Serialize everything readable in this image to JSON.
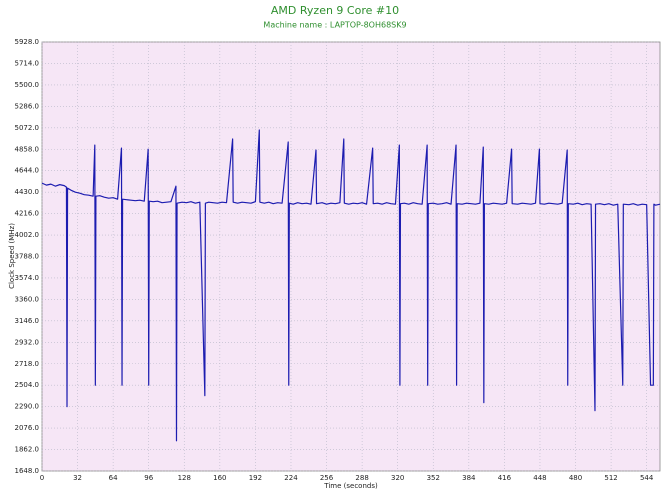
{
  "chart_data": {
    "type": "line",
    "title": "AMD Ryzen 9 Core #10",
    "subtitle": "Machine name : LAPTOP-8OH68SK9",
    "x_label": "Time (seconds)",
    "y_label": "Clock Speed (MHz)",
    "xlim": [
      0,
      556
    ],
    "xticks": [
      0,
      32,
      64,
      96,
      128,
      160,
      192,
      224,
      256,
      288,
      320,
      352,
      384,
      416,
      448,
      480,
      512,
      544
    ],
    "ylim": [
      1648,
      5928
    ],
    "yticks": [
      {
        "value": 1648,
        "label": "1648.0"
      },
      {
        "value": 1862,
        "label": "1862.0"
      },
      {
        "value": 2076,
        "label": "2076.0"
      },
      {
        "value": 2290,
        "label": "2290.0"
      },
      {
        "value": 2504,
        "label": "2504.0"
      },
      {
        "value": 2718,
        "label": "2718.0"
      },
      {
        "value": 2932,
        "label": "2932.0"
      },
      {
        "value": 3146,
        "label": "3146.0"
      },
      {
        "value": 3360,
        "label": "3360.0"
      },
      {
        "value": 3574,
        "label": "3574.0"
      },
      {
        "value": 3788,
        "label": "3788.0"
      },
      {
        "value": 4002,
        "label": "4002.0"
      },
      {
        "value": 4216,
        "label": "4216.0"
      },
      {
        "value": 4430,
        "label": "4430.0"
      },
      {
        "value": 4644,
        "label": "4644.0"
      },
      {
        "value": 4858,
        "label": "4858.0"
      },
      {
        "value": 5072,
        "label": "5072.0"
      },
      {
        "value": 5286,
        "label": "5286.0"
      },
      {
        "value": 5500,
        "label": "5500.0"
      },
      {
        "value": 5714,
        "label": "5714.0"
      },
      {
        "value": 5928,
        "label": "5928.0"
      }
    ],
    "grid": true,
    "x": [
      0,
      4,
      8,
      12,
      16,
      20,
      22,
      22.5,
      23,
      26,
      30,
      34,
      38,
      42,
      46,
      47.5,
      48,
      48.5,
      52,
      56,
      60,
      64,
      68,
      71.5,
      72,
      72.5,
      76,
      80,
      84,
      88,
      92,
      95.5,
      96,
      96.5,
      100,
      104,
      108,
      112,
      116,
      120.5,
      121,
      121.5,
      126,
      130,
      134,
      138,
      142,
      146.5,
      147,
      150,
      154,
      158,
      162,
      166,
      171.5,
      172,
      176,
      180,
      184,
      188,
      192,
      195.5,
      196,
      200,
      204,
      208,
      212,
      216,
      221.5,
      222,
      222.5,
      226,
      230,
      234,
      238,
      242,
      246.5,
      247,
      252,
      256,
      260,
      264,
      268,
      271.5,
      272,
      276,
      280,
      284,
      288,
      292,
      297.5,
      298,
      302,
      306,
      310,
      314,
      318,
      321.5,
      322,
      322.5,
      326,
      330,
      334,
      338,
      342,
      346.5,
      347,
      347.5,
      352,
      356,
      360,
      364,
      368,
      372.5,
      373,
      373.5,
      378,
      382,
      386,
      390,
      394,
      397,
      397.5,
      398,
      402,
      406,
      410,
      414,
      418,
      422.5,
      423,
      428,
      432,
      436,
      440,
      444,
      447.5,
      448,
      452,
      456,
      460,
      464,
      468,
      472.5,
      473,
      473.5,
      478,
      482,
      486,
      490,
      494,
      497.5,
      498,
      502,
      506,
      510,
      514,
      518,
      522.5,
      523,
      528,
      532,
      536,
      540,
      544,
      547.5,
      550,
      550.5,
      552,
      556
    ],
    "series": [
      {
        "name": "Core #10",
        "color": "#1c1cb0",
        "values": [
          4520,
          4500,
          4510,
          4490,
          4505,
          4495,
          4480,
          2290,
          4470,
          4450,
          4430,
          4420,
          4405,
          4400,
          4390,
          4900,
          2504,
          4390,
          4395,
          4380,
          4370,
          4375,
          4360,
          4870,
          2504,
          4360,
          4355,
          4350,
          4345,
          4350,
          4340,
          4858,
          2504,
          4340,
          4335,
          4340,
          4325,
          4330,
          4335,
          4490,
          1950,
          4320,
          4330,
          4325,
          4335,
          4320,
          4330,
          2400,
          4320,
          4330,
          4325,
          4320,
          4330,
          4325,
          4960,
          4330,
          4320,
          4330,
          4325,
          4320,
          4335,
          5050,
          4330,
          4320,
          4330,
          4315,
          4325,
          4320,
          4930,
          2504,
          4320,
          4310,
          4325,
          4315,
          4320,
          4310,
          4850,
          4315,
          4325,
          4310,
          4320,
          4315,
          4325,
          4960,
          4320,
          4310,
          4320,
          4315,
          4325,
          4310,
          4870,
          4315,
          4320,
          4310,
          4325,
          4315,
          4310,
          4900,
          2504,
          4315,
          4320,
          4310,
          4325,
          4315,
          4310,
          4900,
          2504,
          4315,
          4320,
          4310,
          4315,
          4325,
          4310,
          4900,
          2504,
          4315,
          4310,
          4320,
          4315,
          4310,
          4320,
          4880,
          2330,
          4315,
          4310,
          4320,
          4315,
          4310,
          4320,
          4860,
          4315,
          4310,
          4320,
          4315,
          4310,
          4320,
          4860,
          4315,
          4310,
          4320,
          4315,
          4310,
          4320,
          4850,
          2504,
          4315,
          4310,
          4320,
          4305,
          4315,
          4310,
          2250,
          4310,
          4315,
          4305,
          4315,
          4300,
          4310,
          2504,
          4310,
          4305,
          4315,
          4300,
          4310,
          4305,
          2504,
          2504,
          4310,
          4300,
          4310
        ]
      }
    ]
  }
}
